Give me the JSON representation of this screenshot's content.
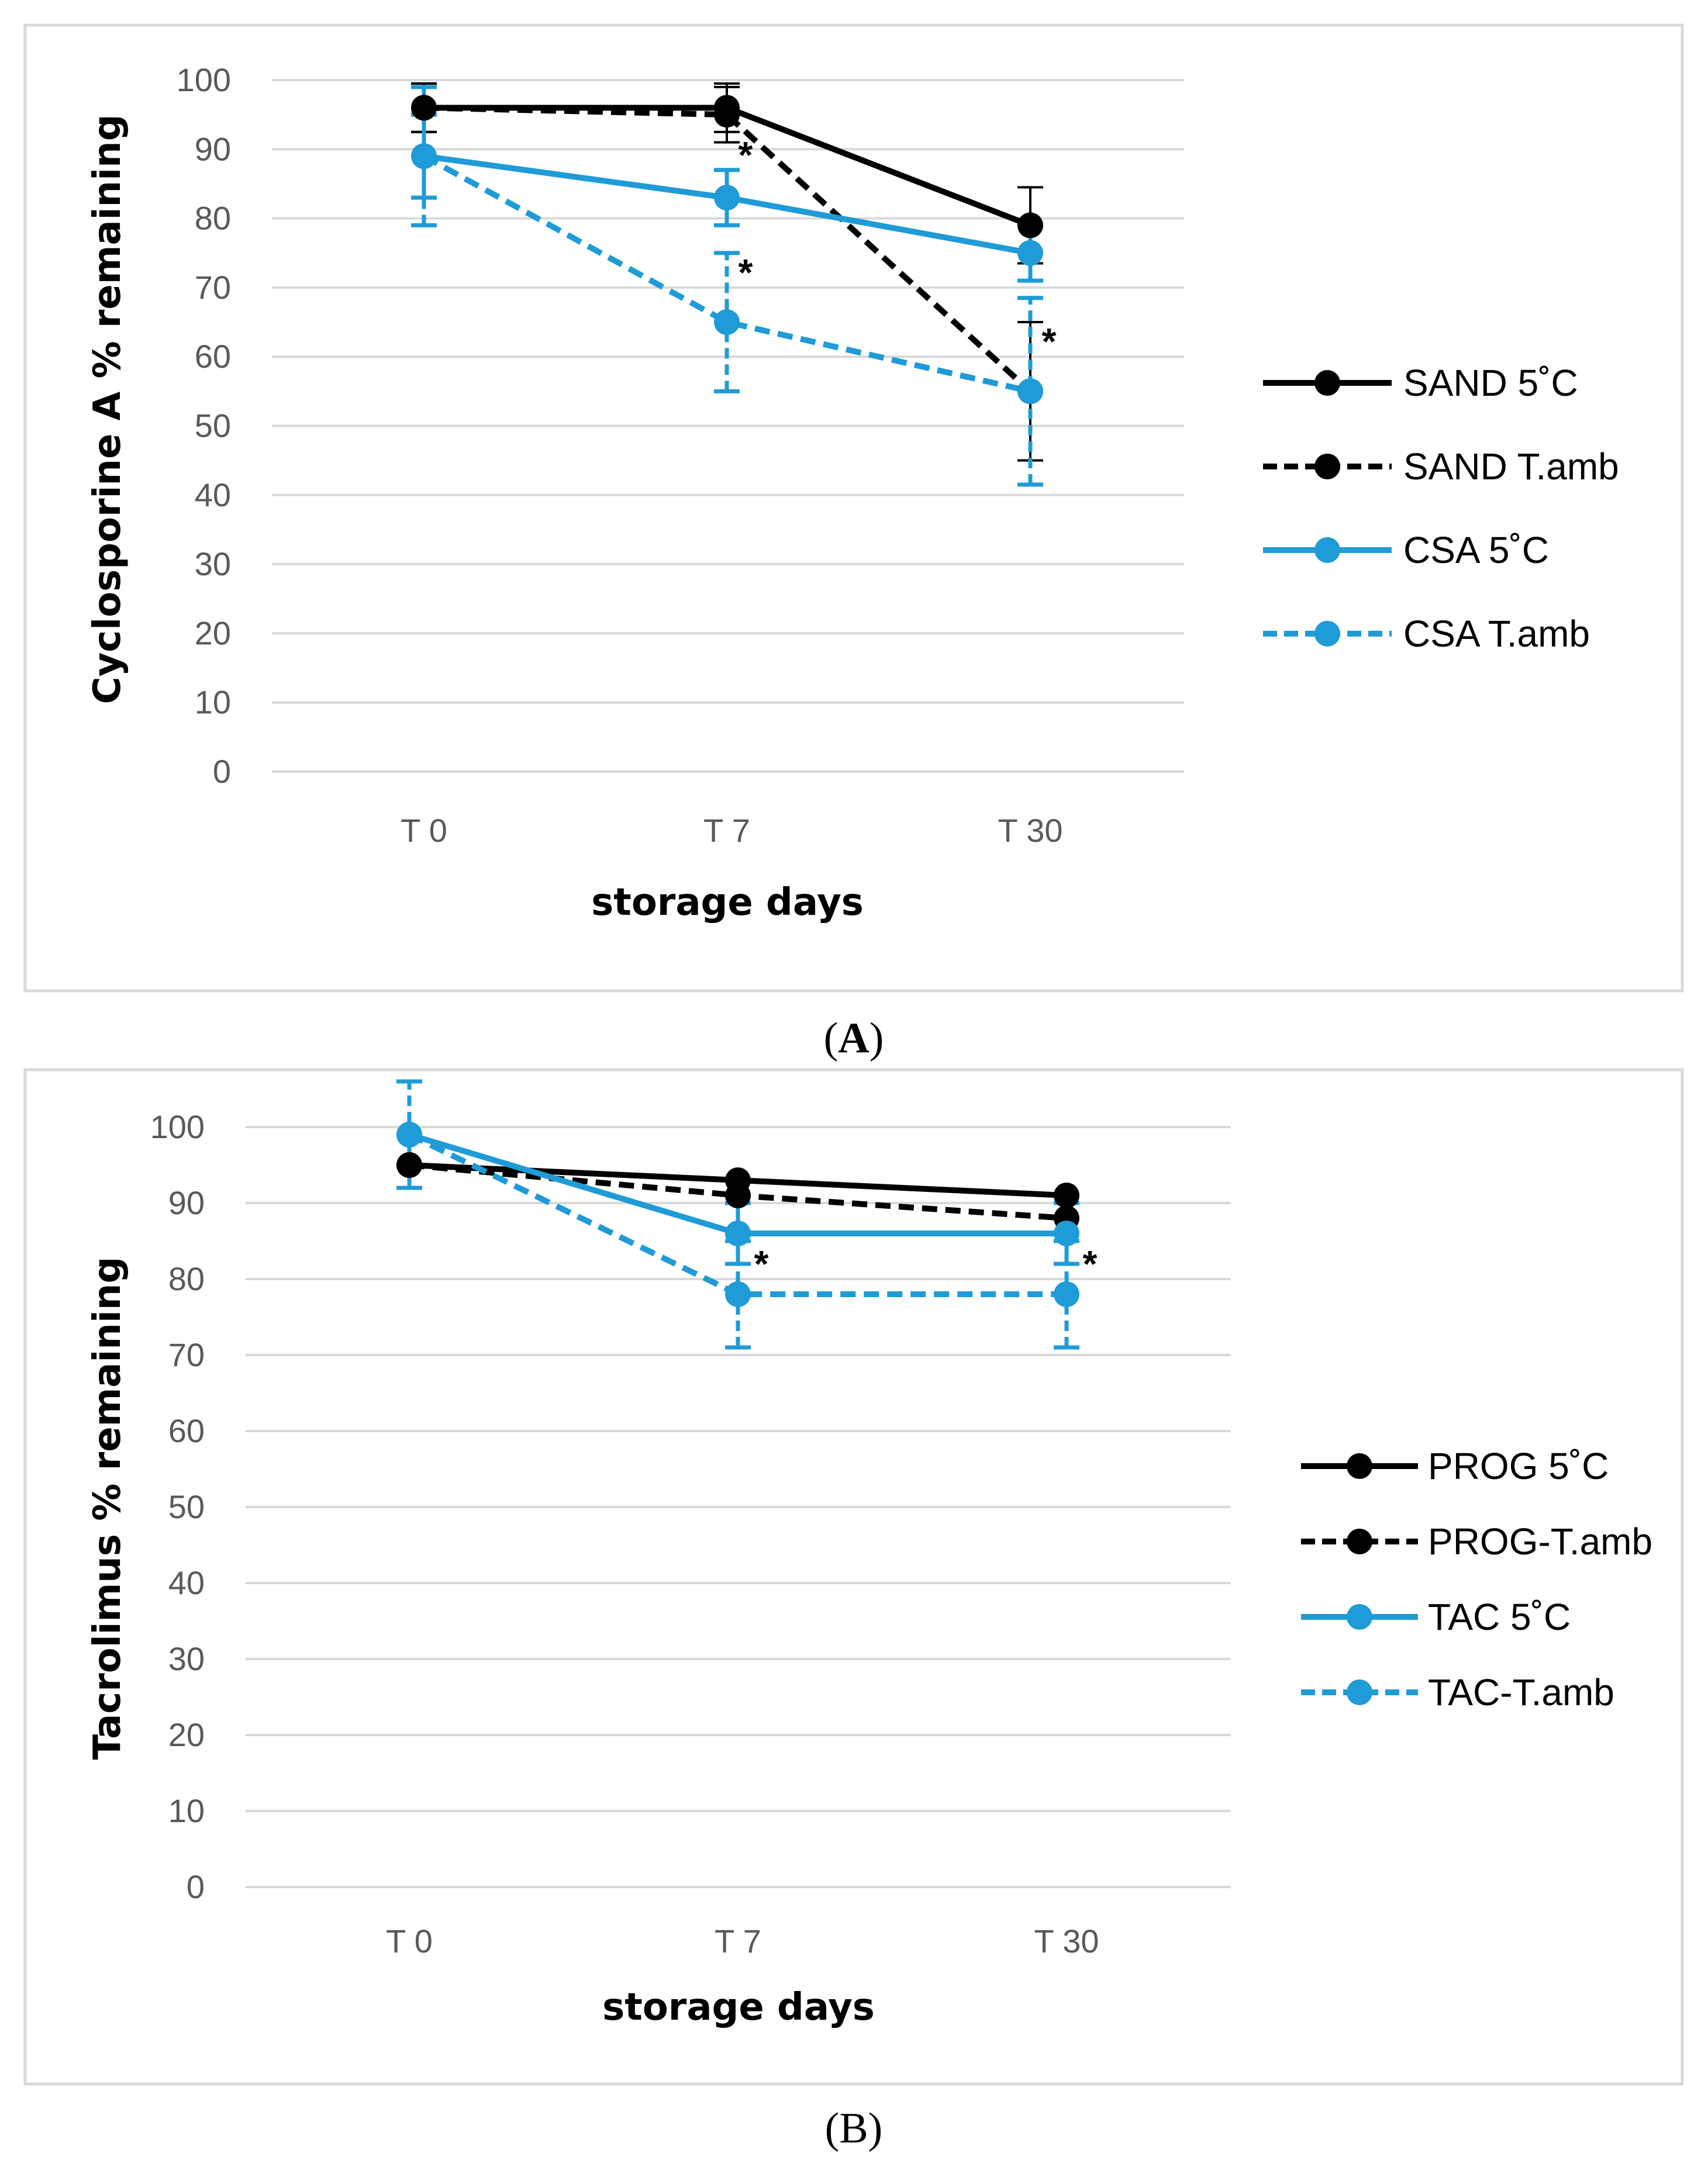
{
  "chart_data": [
    {
      "panel_label_prefix": "(",
      "panel_label_letter": "A",
      "panel_label_suffix": ")",
      "type": "line",
      "categories": [
        "T 0",
        "T 7",
        "T 30"
      ],
      "xlabel": "storage days",
      "ylabel": "Cyclosporine A % remaining",
      "ylim": [
        0,
        100
      ],
      "yticks": [
        0,
        10,
        20,
        30,
        40,
        50,
        60,
        70,
        80,
        90,
        100
      ],
      "grid": true,
      "legend_position": "right",
      "series": [
        {
          "name": "SAND 5˚C",
          "values": [
            96,
            96,
            79
          ],
          "errors": [
            3.5,
            3.5,
            5.5
          ],
          "color": "#000000",
          "dashed": false
        },
        {
          "name": "SAND T.amb",
          "values": [
            96,
            95,
            55
          ],
          "errors": [
            3.5,
            4.0,
            10.0
          ],
          "color": "#000000",
          "dashed": true
        },
        {
          "name": "CSA 5˚C",
          "values": [
            89,
            83,
            75
          ],
          "errors": [
            6.0,
            4.0,
            4.0
          ],
          "color": "#1F9BD7",
          "dashed": false
        },
        {
          "name": "CSA T.amb",
          "values": [
            89,
            65,
            55
          ],
          "errors": [
            10.0,
            10.0,
            13.5
          ],
          "color": "#1F9BD7",
          "dashed": true
        }
      ],
      "annotations": [
        {
          "text": "*",
          "category": "T 7",
          "y": 87
        },
        {
          "text": "*",
          "category": "T 7",
          "y": 70
        },
        {
          "text": "*",
          "category": "T 30",
          "y": 60
        }
      ]
    },
    {
      "panel_label": "(B)",
      "type": "line",
      "categories": [
        "T 0",
        "T 7",
        "T 30"
      ],
      "xlabel": "storage days",
      "ylabel": "Tacrolimus % remaining",
      "ylim": [
        0,
        100
      ],
      "yticks": [
        0,
        10,
        20,
        30,
        40,
        50,
        60,
        70,
        80,
        90,
        100
      ],
      "grid": true,
      "legend_position": "right",
      "series": [
        {
          "name": "PROG 5˚C",
          "values": [
            95,
            93,
            91
          ],
          "errors": [
            0,
            0,
            0
          ],
          "color": "#000000",
          "dashed": false
        },
        {
          "name": "PROG-T.amb",
          "values": [
            95,
            91,
            88
          ],
          "errors": [
            0,
            0,
            0
          ],
          "color": "#000000",
          "dashed": true
        },
        {
          "name": "TAC 5˚C",
          "values": [
            99,
            86,
            86
          ],
          "errors": [
            0,
            4,
            4
          ],
          "color": "#1F9BD7",
          "dashed": false
        },
        {
          "name": "TAC-T.amb",
          "values": [
            99,
            78,
            78
          ],
          "errors": [
            7,
            7,
            7
          ],
          "color": "#1F9BD7",
          "dashed": true
        }
      ],
      "annotations": [
        {
          "text": "*",
          "category": "T 7",
          "y": 80
        },
        {
          "text": "*",
          "category": "T 30",
          "y": 80
        }
      ]
    }
  ]
}
